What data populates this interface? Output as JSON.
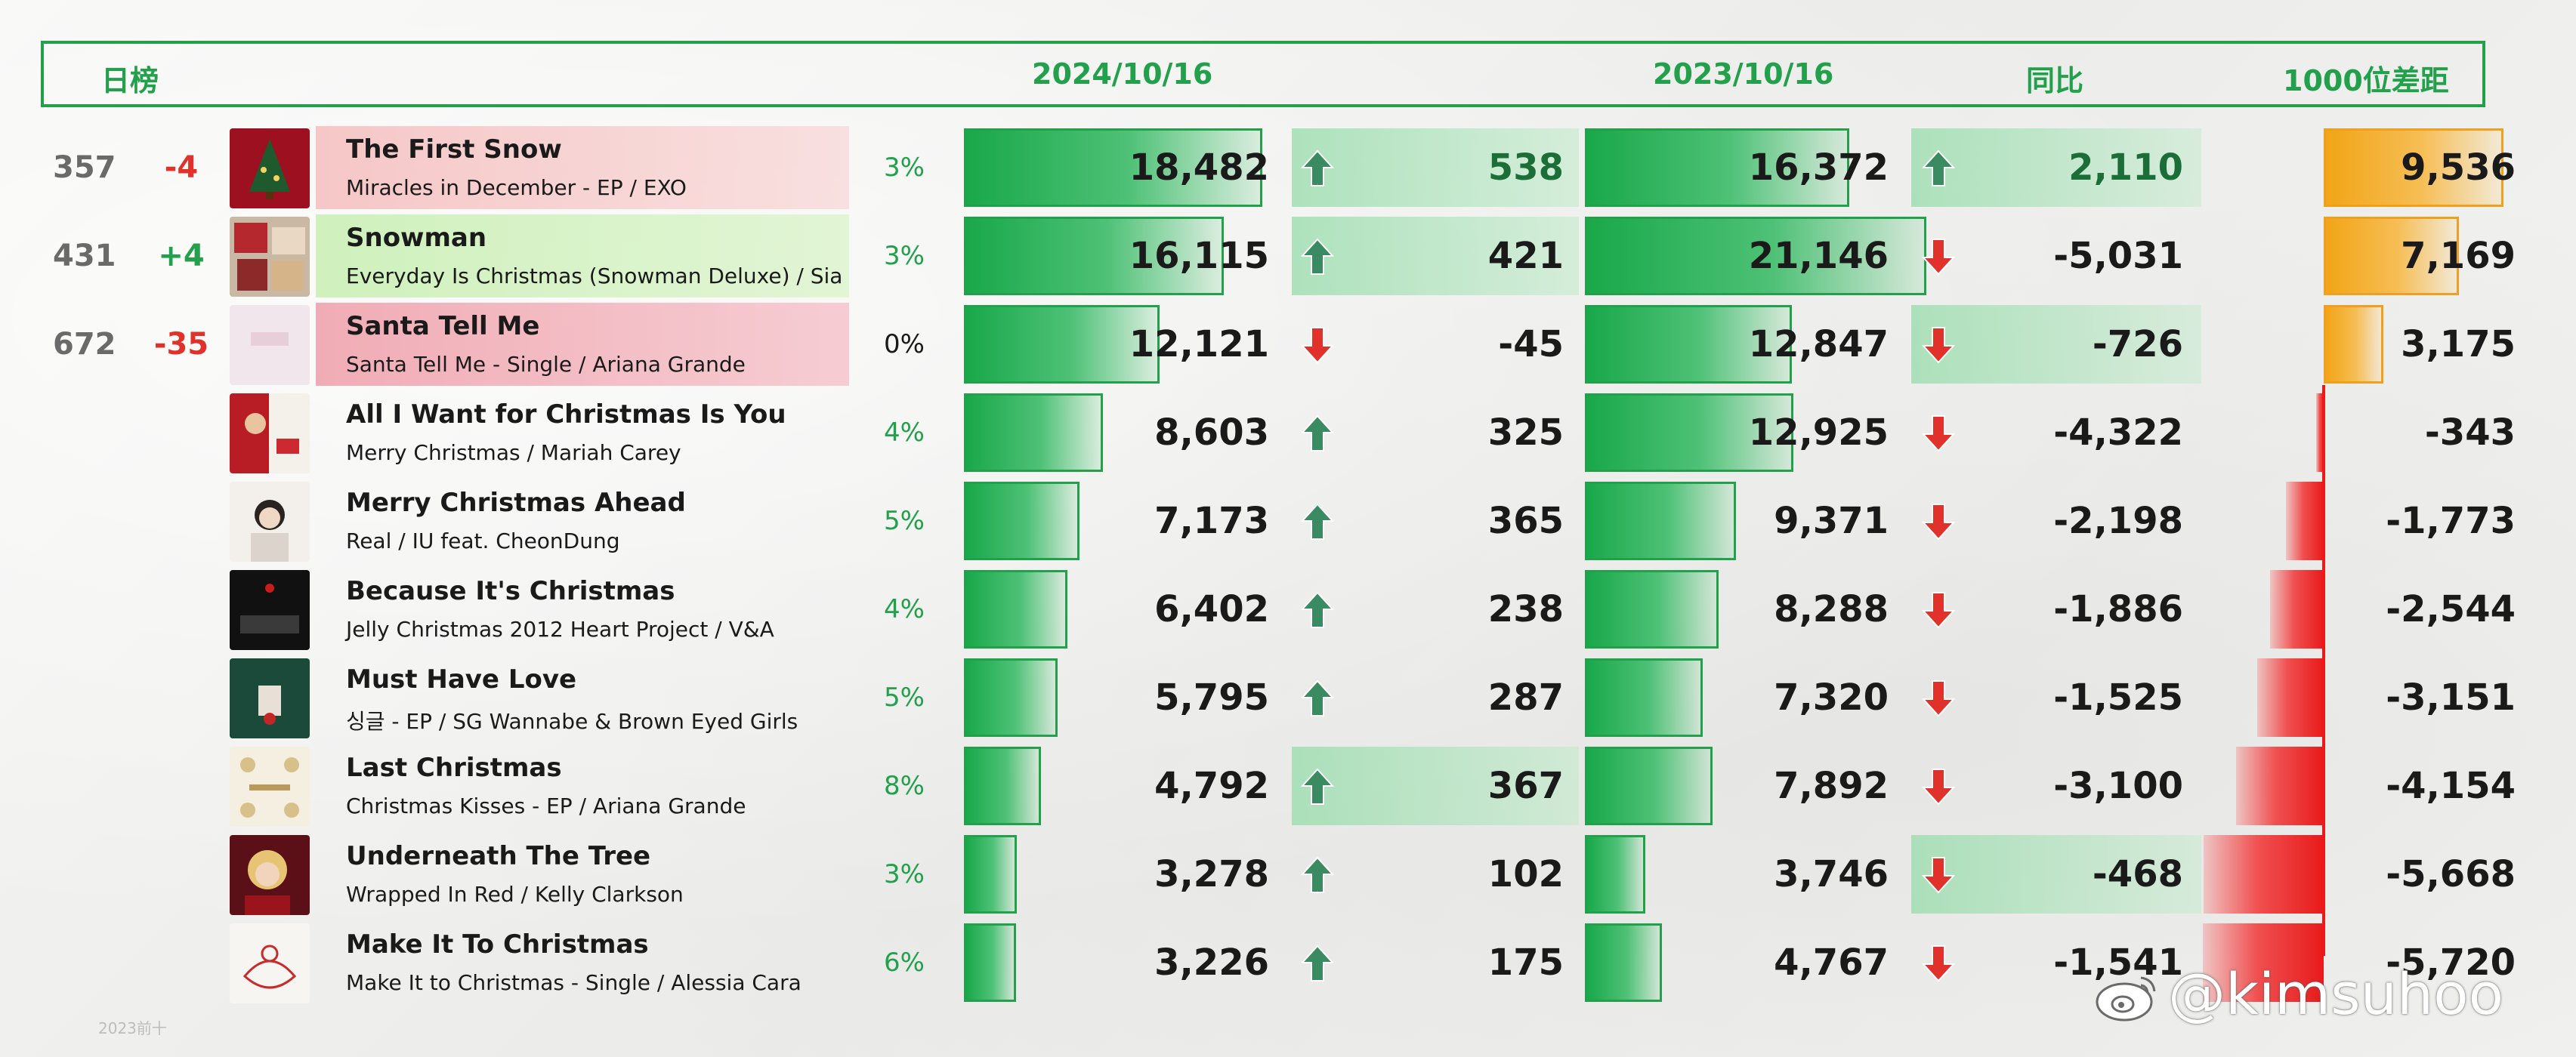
{
  "header": {
    "chart_label": "日榜",
    "date_current": "2024/10/16",
    "date_prev": "2023/10/16",
    "yoy_label": "同比",
    "gap_label": "1000位差距"
  },
  "colors": {
    "accent_green": "#22a04b",
    "up_green": "#22a04b",
    "down_red": "#e0322b",
    "gap_positive_orange": "#f2a516",
    "gap_negative_red": "#e81a1a",
    "title_pink": "#f6d0d0",
    "title_green": "#d6f2c6",
    "title_red": "#f2b4bd"
  },
  "chart_data": {
    "type": "table",
    "columns": [
      "rank",
      "rank_change",
      "song",
      "album_artist",
      "share",
      "2024/10/16",
      "daily_change",
      "2023/10/16",
      "同比",
      "1000位差距"
    ],
    "rows": [
      {
        "rank": "357",
        "rank_change": "-4",
        "song": "The First Snow",
        "album_artist": "Miracles in December - EP / EXO",
        "share": "3%",
        "v2024": 18482,
        "v2024_text": "18,482",
        "delta": 538,
        "delta_text": "538",
        "v2023": 16372,
        "v2023_text": "16,372",
        "yoy": 2110,
        "yoy_text": "2,110",
        "gap": 9536,
        "gap_text": "9,536",
        "title_tint": "pink",
        "cover": "tree"
      },
      {
        "rank": "431",
        "rank_change": "+4",
        "song": "Snowman",
        "album_artist": "Everyday Is Christmas (Snowman Deluxe) / Sia",
        "share": "3%",
        "v2024": 16115,
        "v2024_text": "16,115",
        "delta": 421,
        "delta_text": "421",
        "v2023": 21146,
        "v2023_text": "21,146",
        "yoy": -5031,
        "yoy_text": "-5,031",
        "gap": 7169,
        "gap_text": "7,169",
        "title_tint": "green",
        "cover": "collage"
      },
      {
        "rank": "672",
        "rank_change": "-35",
        "song": "Santa Tell Me",
        "album_artist": "Santa Tell Me - Single / Ariana Grande",
        "share": "0%",
        "v2024": 12121,
        "v2024_text": "12,121",
        "delta": -45,
        "delta_text": "-45",
        "v2023": 12847,
        "v2023_text": "12,847",
        "yoy": -726,
        "yoy_text": "-726",
        "gap": 3175,
        "gap_text": "3,175",
        "title_tint": "red",
        "cover": "pale"
      },
      {
        "rank": "",
        "rank_change": "",
        "song": "All I Want for Christmas Is You",
        "album_artist": "Merry Christmas / Mariah Carey",
        "share": "4%",
        "v2024": 8603,
        "v2024_text": "8,603",
        "delta": 325,
        "delta_text": "325",
        "v2023": 12925,
        "v2023_text": "12,925",
        "yoy": -4322,
        "yoy_text": "-4,322",
        "gap": -343,
        "gap_text": "-343",
        "title_tint": "",
        "cover": "redwhite"
      },
      {
        "rank": "",
        "rank_change": "",
        "song": "Merry Christmas Ahead",
        "album_artist": "Real / IU feat. CheonDung",
        "share": "5%",
        "v2024": 7173,
        "v2024_text": "7,173",
        "delta": 365,
        "delta_text": "365",
        "v2023": 9371,
        "v2023_text": "9,371",
        "yoy": -2198,
        "yoy_text": "-2,198",
        "gap": -1773,
        "gap_text": "-1,773",
        "title_tint": "",
        "cover": "portrait"
      },
      {
        "rank": "",
        "rank_change": "",
        "song": "Because It's Christmas",
        "album_artist": "Jelly Christmas 2012 Heart Project  / V&A",
        "share": "4%",
        "v2024": 6402,
        "v2024_text": "6,402",
        "delta": 238,
        "delta_text": "238",
        "v2023": 8288,
        "v2023_text": "8,288",
        "yoy": -1886,
        "yoy_text": "-1,886",
        "gap": -2544,
        "gap_text": "-2,544",
        "title_tint": "",
        "cover": "dark"
      },
      {
        "rank": "",
        "rank_change": "",
        "song": "Must Have Love",
        "album_artist": "싱글 - EP / SG Wannabe & Brown Eyed Girls",
        "share": "5%",
        "v2024": 5795,
        "v2024_text": "5,795",
        "delta": 287,
        "delta_text": "287",
        "v2023": 7320,
        "v2023_text": "7,320",
        "yoy": -1525,
        "yoy_text": "-1,525",
        "gap": -3151,
        "gap_text": "-3,151",
        "title_tint": "",
        "cover": "teal"
      },
      {
        "rank": "",
        "rank_change": "",
        "song": "Last Christmas",
        "album_artist": "Christmas Kisses - EP / Ariana Grande",
        "share": "8%",
        "v2024": 4792,
        "v2024_text": "4,792",
        "delta": 367,
        "delta_text": "367",
        "v2023": 7892,
        "v2023_text": "7,892",
        "yoy": -3100,
        "yoy_text": "-3,100",
        "gap": -4154,
        "gap_text": "-4,154",
        "title_tint": "",
        "cover": "cream"
      },
      {
        "rank": "",
        "rank_change": "",
        "song": "Underneath The Tree",
        "album_artist": "Wrapped In Red / Kelly Clarkson",
        "share": "3%",
        "v2024": 3278,
        "v2024_text": "3,278",
        "delta": 102,
        "delta_text": "102",
        "v2023": 3746,
        "v2023_text": "3,746",
        "yoy": -468,
        "yoy_text": "-468",
        "gap": -5668,
        "gap_text": "-5,668",
        "title_tint": "",
        "cover": "blonde"
      },
      {
        "rank": "",
        "rank_change": "",
        "song": "Make It To Christmas",
        "album_artist": "Make It to Christmas - Single / Alessia Cara",
        "share": "6%",
        "v2024": 3226,
        "v2024_text": "3,226",
        "delta": 175,
        "delta_text": "175",
        "v2023": 4767,
        "v2023_text": "4,767",
        "yoy": -1541,
        "yoy_text": "-1,541",
        "gap": -5720,
        "gap_text": "-5,720",
        "title_tint": "",
        "cover": "sketch"
      }
    ],
    "delta_highlight_rows": [
      0,
      1,
      7
    ],
    "yoy_highlight_rows": [
      0,
      2,
      8
    ],
    "bar_scale_max": 22000,
    "gap_scale_max": 12000
  },
  "watermark": {
    "text": "@kimsuhoo",
    "small_text": "2023前十"
  }
}
